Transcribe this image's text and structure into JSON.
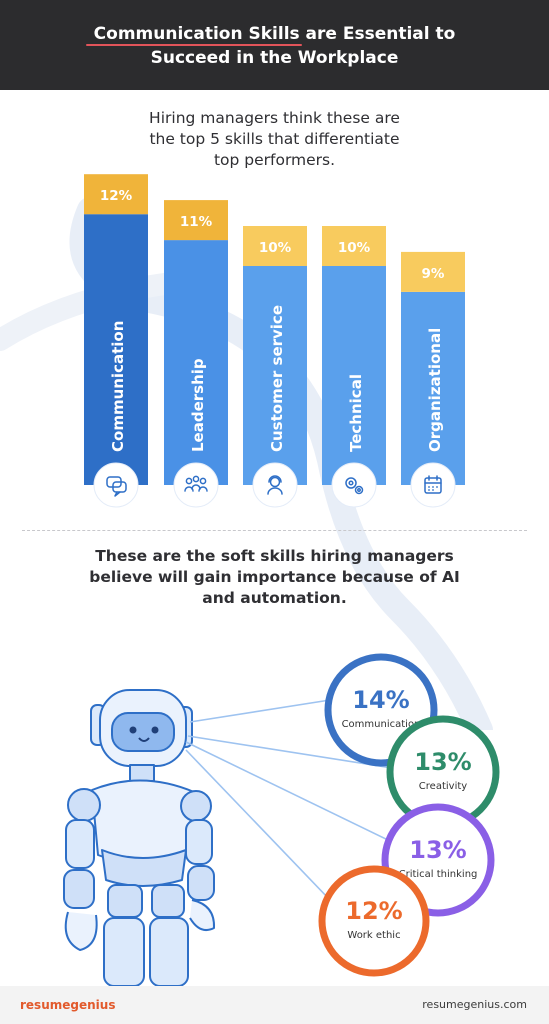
{
  "header": {
    "title_line1_highlight": "Communication Skills",
    "title_line1_rest": " are Essential to",
    "title_line2": "Succeed in the Workplace"
  },
  "bar_section": {
    "subtitle_lines": [
      "Hiring managers think these are",
      "the top 5 skills that differentiate",
      "top performers."
    ]
  },
  "soft_section": {
    "subtitle_line1_pre": "These are the ",
    "subtitle_line1_bold": "soft skills",
    "subtitle_line1_post": " hiring managers",
    "subtitle_line2": "believe will gain importance because of AI",
    "subtitle_line3": "and automation."
  },
  "colors": {
    "header_bg": "#2c2c2e",
    "bar_dark_blue": "#2e6fc7",
    "bar_blue": "#4a91e6",
    "bar_light_blue": "#5aa0ec",
    "bar_top_gold": "#f0b43a",
    "bar_top_yellow": "#f8cb5e",
    "circle_blue": "#3a72c4",
    "circle_green": "#2e8c6a",
    "circle_purple": "#8a5fe6",
    "circle_orange": "#ec6a2c",
    "brand_orange": "#e25a2c"
  },
  "chart_data": [
    {
      "type": "bar",
      "categories": [
        "Communication",
        "Leadership",
        "Customer service",
        "Technical",
        "Organizational"
      ],
      "values": [
        12,
        11,
        10,
        10,
        9
      ],
      "value_labels": [
        "12%",
        "11%",
        "10%",
        "10%",
        "9%"
      ],
      "icons": [
        "chat-bubbles-icon",
        "group-icon",
        "headset-agent-icon",
        "gears-icon",
        "calendar-icon"
      ],
      "unit": "%"
    },
    {
      "type": "bubble",
      "categories": [
        "Communication",
        "Creativity",
        "Critical thinking",
        "Work ethic"
      ],
      "values": [
        14,
        13,
        13,
        12
      ],
      "value_labels": [
        "14%",
        "13%",
        "13%",
        "12%"
      ]
    }
  ],
  "footer": {
    "brand_part1": "resume",
    "brand_part2": "genius",
    "site": "resumegenius.com"
  }
}
